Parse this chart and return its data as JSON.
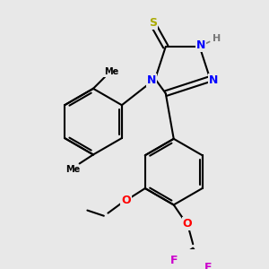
{
  "bg_color": "#e8e8e8",
  "bond_color": "#000000",
  "bond_width": 1.5,
  "atom_colors": {
    "N": "#0000ff",
    "S": "#aaaa00",
    "O": "#ff0000",
    "F": "#cc00cc",
    "H": "#777777",
    "C": "#000000"
  },
  "font_size": 9,
  "font_size_small": 8
}
